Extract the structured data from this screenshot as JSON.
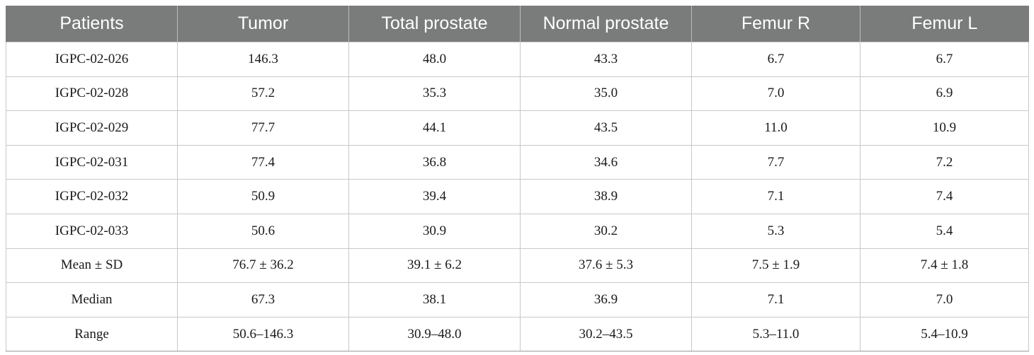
{
  "table": {
    "headers": [
      "Patients",
      "Tumor",
      "Total prostate",
      "Normal prostate",
      "Femur R",
      "Femur L"
    ],
    "rows": [
      [
        "IGPC-02-026",
        "146.3",
        "48.0",
        "43.3",
        "6.7",
        "6.7"
      ],
      [
        "IGPC-02-028",
        "57.2",
        "35.3",
        "35.0",
        "7.0",
        "6.9"
      ],
      [
        "IGPC-02-029",
        "77.7",
        "44.1",
        "43.5",
        "11.0",
        "10.9"
      ],
      [
        "IGPC-02-031",
        "77.4",
        "36.8",
        "34.6",
        "7.7",
        "7.2"
      ],
      [
        "IGPC-02-032",
        "50.9",
        "39.4",
        "38.9",
        "7.1",
        "7.4"
      ],
      [
        "IGPC-02-033",
        "50.6",
        "30.9",
        "30.2",
        "5.3",
        "5.4"
      ],
      [
        "Mean ± SD",
        "76.7 ± 36.2",
        "39.1 ± 6.2",
        "37.6 ± 5.3",
        "7.5 ± 1.9",
        "7.4 ± 1.8"
      ],
      [
        "Median",
        "67.3",
        "38.1",
        "36.9",
        "7.1",
        "7.0"
      ],
      [
        "Range",
        "50.6–146.3",
        "30.9–48.0",
        "30.2–43.5",
        "5.3–11.0",
        "5.4–10.9"
      ]
    ]
  },
  "colors": {
    "header_bg": "#7a7c7c",
    "header_text": "#ffffff",
    "grid_line": "#c8c8c8"
  }
}
